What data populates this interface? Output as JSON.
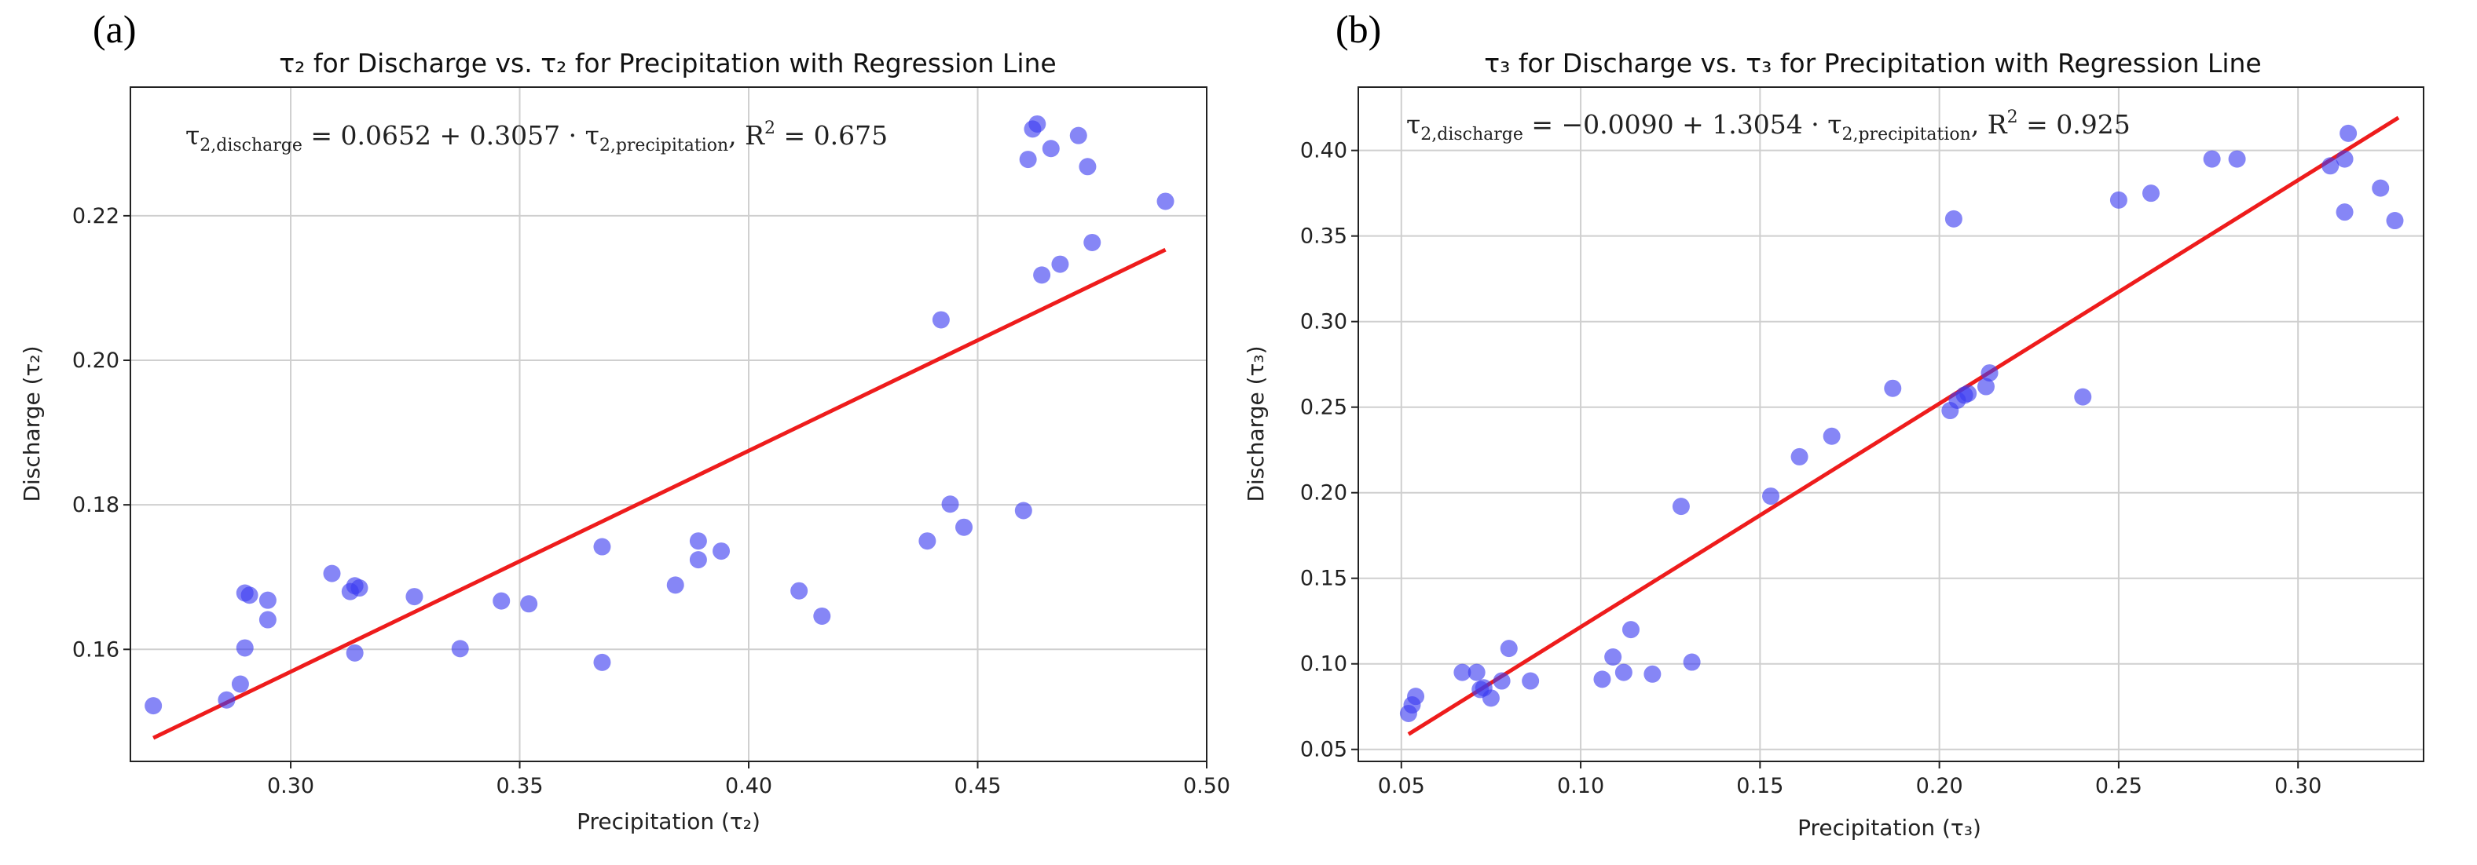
{
  "chart_data": [
    {
      "type": "scatter",
      "panel_label": "(a)",
      "title": "τ₂ for Discharge vs. τ₂ for Precipitation with Regression Line",
      "xlabel": "Precipitation (τ₂)",
      "ylabel": "Discharge (τ₂)",
      "xlim": [
        0.265,
        0.5
      ],
      "ylim": [
        0.1445,
        0.2378
      ],
      "xticks": [
        0.3,
        0.35,
        0.4,
        0.45,
        0.5
      ],
      "xtick_labels": [
        "0.30",
        "0.35",
        "0.40",
        "0.45",
        "0.50"
      ],
      "yticks": [
        0.16,
        0.18,
        0.2,
        0.22
      ],
      "ytick_labels": [
        "0.16",
        "0.18",
        "0.20",
        "0.22"
      ],
      "grid": true,
      "equation": {
        "lhs_symbol": "τ",
        "lhs_sub": "2,discharge",
        "middle": " = 0.0652 + 0.3057 · ",
        "rhs_symbol": "τ",
        "rhs_sub": "2,precipitation",
        "r2_prefix": ",    R",
        "r2_sup": "2",
        "r2_suffix": " = 0.675"
      },
      "regression": {
        "intercept": 0.0652,
        "slope": 0.3057,
        "x_start": 0.27,
        "x_end": 0.491,
        "color": "#ee1c1c"
      },
      "point_color": "#3b3bf0",
      "x": [
        0.27,
        0.286,
        0.289,
        0.29,
        0.29,
        0.291,
        0.295,
        0.295,
        0.309,
        0.313,
        0.314,
        0.314,
        0.315,
        0.327,
        0.337,
        0.346,
        0.352,
        0.368,
        0.368,
        0.384,
        0.389,
        0.389,
        0.394,
        0.411,
        0.416,
        0.439,
        0.442,
        0.444,
        0.447,
        0.46,
        0.461,
        0.462,
        0.463,
        0.464,
        0.466,
        0.468,
        0.472,
        0.474,
        0.475,
        0.491
      ],
      "y": [
        0.1522,
        0.153,
        0.1552,
        0.1678,
        0.1602,
        0.1675,
        0.1641,
        0.1668,
        0.1705,
        0.168,
        0.1595,
        0.1688,
        0.1685,
        0.1673,
        0.1601,
        0.1667,
        0.1663,
        0.1582,
        0.1742,
        0.1689,
        0.1724,
        0.175,
        0.1736,
        0.1681,
        0.1646,
        0.175,
        0.2056,
        0.1801,
        0.1769,
        0.1792,
        0.2278,
        0.232,
        0.2327,
        0.2118,
        0.2293,
        0.2133,
        0.2311,
        0.2268,
        0.2163,
        0.222
      ]
    },
    {
      "type": "scatter",
      "panel_label": "(b)",
      "title": "τ₃ for Discharge vs. τ₃ for Precipitation with Regression Line",
      "xlabel": "Precipitation (τ₃)",
      "ylabel": "Discharge (τ₃)",
      "xlim": [
        0.038,
        0.335
      ],
      "ylim": [
        0.043,
        0.437
      ],
      "xticks": [
        0.05,
        0.1,
        0.15,
        0.2,
        0.25,
        0.3
      ],
      "xtick_labels": [
        "0.05",
        "0.10",
        "0.15",
        "0.20",
        "0.25",
        "0.30"
      ],
      "yticks": [
        0.05,
        0.1,
        0.15,
        0.2,
        0.25,
        0.3,
        0.35,
        0.4
      ],
      "ytick_labels": [
        "0.05",
        "0.10",
        "0.15",
        "0.20",
        "0.25",
        "0.30",
        "0.35",
        "0.40"
      ],
      "grid": true,
      "equation": {
        "lhs_symbol": "τ",
        "lhs_sub": "2,discharge",
        "middle": " = −0.0090 + 1.3054 · ",
        "rhs_symbol": "τ",
        "rhs_sub": "2,precipitation",
        "r2_prefix": ",    R",
        "r2_sup": "2",
        "r2_suffix": " = 0.925"
      },
      "regression": {
        "intercept": -0.009,
        "slope": 1.3054,
        "x_start": 0.052,
        "x_end": 0.328,
        "color": "#ee1c1c"
      },
      "point_color": "#3b3bf0",
      "x": [
        0.052,
        0.053,
        0.054,
        0.067,
        0.071,
        0.072,
        0.073,
        0.075,
        0.078,
        0.08,
        0.086,
        0.106,
        0.109,
        0.112,
        0.114,
        0.12,
        0.128,
        0.131,
        0.153,
        0.161,
        0.17,
        0.187,
        0.203,
        0.204,
        0.205,
        0.207,
        0.208,
        0.213,
        0.214,
        0.24,
        0.25,
        0.259,
        0.276,
        0.283,
        0.309,
        0.313,
        0.313,
        0.314,
        0.323,
        0.327
      ],
      "y": [
        0.071,
        0.076,
        0.081,
        0.095,
        0.095,
        0.085,
        0.086,
        0.08,
        0.09,
        0.109,
        0.09,
        0.091,
        0.104,
        0.095,
        0.12,
        0.094,
        0.192,
        0.101,
        0.198,
        0.221,
        0.233,
        0.261,
        0.248,
        0.36,
        0.254,
        0.257,
        0.258,
        0.262,
        0.27,
        0.256,
        0.371,
        0.375,
        0.395,
        0.395,
        0.391,
        0.364,
        0.395,
        0.41,
        0.378,
        0.359
      ]
    }
  ]
}
